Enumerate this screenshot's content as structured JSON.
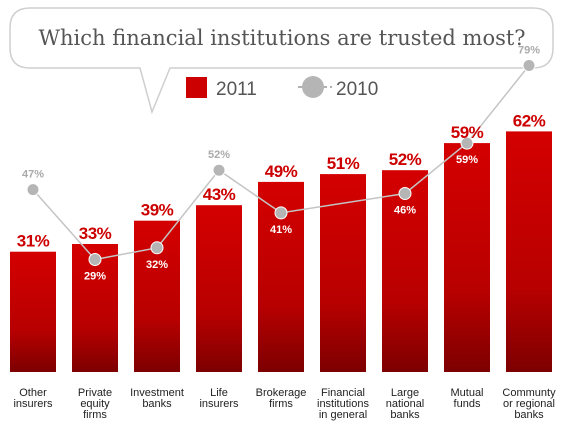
{
  "title": "Which financial institutions are trusted most?",
  "legend": {
    "series_2011": "2011",
    "series_2010": "2010"
  },
  "colors": {
    "bar": "#cc0000",
    "bar_dark": "#8a0000",
    "line": "#b0b0b0",
    "text": "#555555"
  },
  "chart_data": {
    "type": "bar",
    "categories": [
      "Other insurers",
      "Private equity firms",
      "Investment banks",
      "Life insurers",
      "Brokerage firms",
      "Financial institutions in general",
      "Large national banks",
      "Mutual funds",
      "Community or regional banks"
    ],
    "category_lines": [
      [
        "Other",
        "insurers"
      ],
      [
        "Private",
        "equity",
        "firms"
      ],
      [
        "Investment",
        "banks"
      ],
      [
        "Life",
        "insurers"
      ],
      [
        "Brokerage",
        "firms"
      ],
      [
        "Financial",
        "institutions",
        "in general"
      ],
      [
        "Large",
        "national",
        "banks"
      ],
      [
        "Mutual",
        "funds"
      ],
      [
        "Communty",
        "or regional",
        "banks"
      ]
    ],
    "series": [
      {
        "name": "2011",
        "type": "bar",
        "values": [
          31,
          33,
          39,
          43,
          49,
          51,
          52,
          59,
          62
        ]
      },
      {
        "name": "2010",
        "type": "line",
        "values": [
          47,
          29,
          32,
          52,
          41,
          null,
          46,
          59,
          79
        ]
      }
    ],
    "value_labels_2011": [
      "31%",
      "33%",
      "39%",
      "43%",
      "49%",
      "51%",
      "52%",
      "59%",
      "62%"
    ],
    "value_labels_2010": [
      "47%",
      "29%",
      "32%",
      "52%",
      "41%",
      "",
      "46%",
      "59%",
      "79%"
    ],
    "ylim": [
      0,
      100
    ],
    "grid": false,
    "legend_position": "top-center"
  }
}
